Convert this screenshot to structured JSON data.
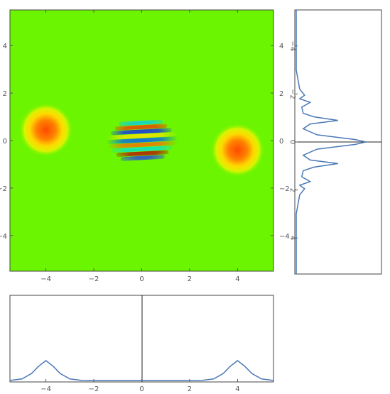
{
  "colors": {
    "background_field": "#6cf500",
    "curve": "#4a78b6",
    "frame": "#444444",
    "axis": "#222222",
    "tick_text": "#555555"
  },
  "chart_data": [
    {
      "id": "density",
      "type": "heatmap",
      "colormap": "rainbow (blue-cyan-green-yellow-orange-red)",
      "xlim": [
        -5.5,
        5.5
      ],
      "ylim": [
        -5.5,
        5.5
      ],
      "x_ticks": [
        -4,
        -2,
        0,
        2,
        4
      ],
      "y_ticks": [
        4,
        2,
        0,
        -2,
        -4
      ],
      "x_tick_labels": [
        "−4",
        "−2",
        "0",
        "2",
        "4"
      ],
      "y_tick_labels": [
        "4",
        "2",
        "0",
        "−2",
        "−4"
      ],
      "features": [
        {
          "kind": "gaussian-blob",
          "x": -4,
          "y": 0.45,
          "peak_color": "#ff5a00"
        },
        {
          "kind": "gaussian-blob",
          "x": 4,
          "y": -0.4,
          "peak_color": "#ff5a00"
        },
        {
          "kind": "interference-fringes",
          "x": 0,
          "y": 0,
          "band_count": 9
        }
      ],
      "grid": false
    },
    {
      "id": "x-marginal",
      "type": "line",
      "xlim": [
        -5.5,
        5.5
      ],
      "x_ticks": [
        -4,
        -2,
        0,
        2,
        4
      ],
      "x_tick_labels": [
        "−4",
        "−2",
        "0",
        "2",
        "4"
      ],
      "x": [
        -5.5,
        -5.0,
        -4.6,
        -4.3,
        -4.0,
        -3.7,
        -3.4,
        -3.0,
        -2.5,
        -2.0,
        -1.0,
        0.0,
        1.0,
        2.0,
        2.5,
        3.0,
        3.4,
        3.7,
        4.0,
        4.3,
        4.6,
        5.0,
        5.5
      ],
      "y": [
        0.003,
        0.08,
        0.35,
        0.72,
        1.0,
        0.72,
        0.35,
        0.08,
        0.005,
        0.0,
        0.0,
        0.0,
        0.0,
        0.0,
        0.005,
        0.08,
        0.35,
        0.72,
        1.0,
        0.72,
        0.35,
        0.08,
        0.003
      ],
      "vertical_axis_at_x": 0,
      "grid": false
    },
    {
      "id": "y-marginal",
      "type": "line",
      "orientation": "rotated",
      "ylim": [
        -5.5,
        5.5
      ],
      "y_ticks": [
        -4,
        -2,
        0,
        2,
        4
      ],
      "y_tick_labels": [
        "−4",
        "−2",
        "0",
        "2",
        "4"
      ],
      "y": [
        -5.5,
        -3.0,
        -2.2,
        -1.95,
        -1.8,
        -1.65,
        -1.45,
        -1.2,
        -1.05,
        -0.9,
        -0.75,
        -0.55,
        -0.3,
        -0.1,
        0.0,
        0.1,
        0.3,
        0.55,
        0.75,
        0.9,
        1.05,
        1.2,
        1.45,
        1.65,
        1.8,
        1.95,
        2.2,
        3.0,
        5.5
      ],
      "value": [
        0.0,
        0.0,
        0.05,
        0.12,
        0.05,
        0.2,
        0.08,
        0.1,
        0.25,
        0.6,
        0.2,
        0.1,
        0.3,
        0.85,
        1.0,
        0.85,
        0.3,
        0.1,
        0.2,
        0.6,
        0.25,
        0.1,
        0.08,
        0.2,
        0.05,
        0.12,
        0.05,
        0.0,
        0.0
      ],
      "horizontal_axis_at_y": 0,
      "grid": false
    }
  ]
}
